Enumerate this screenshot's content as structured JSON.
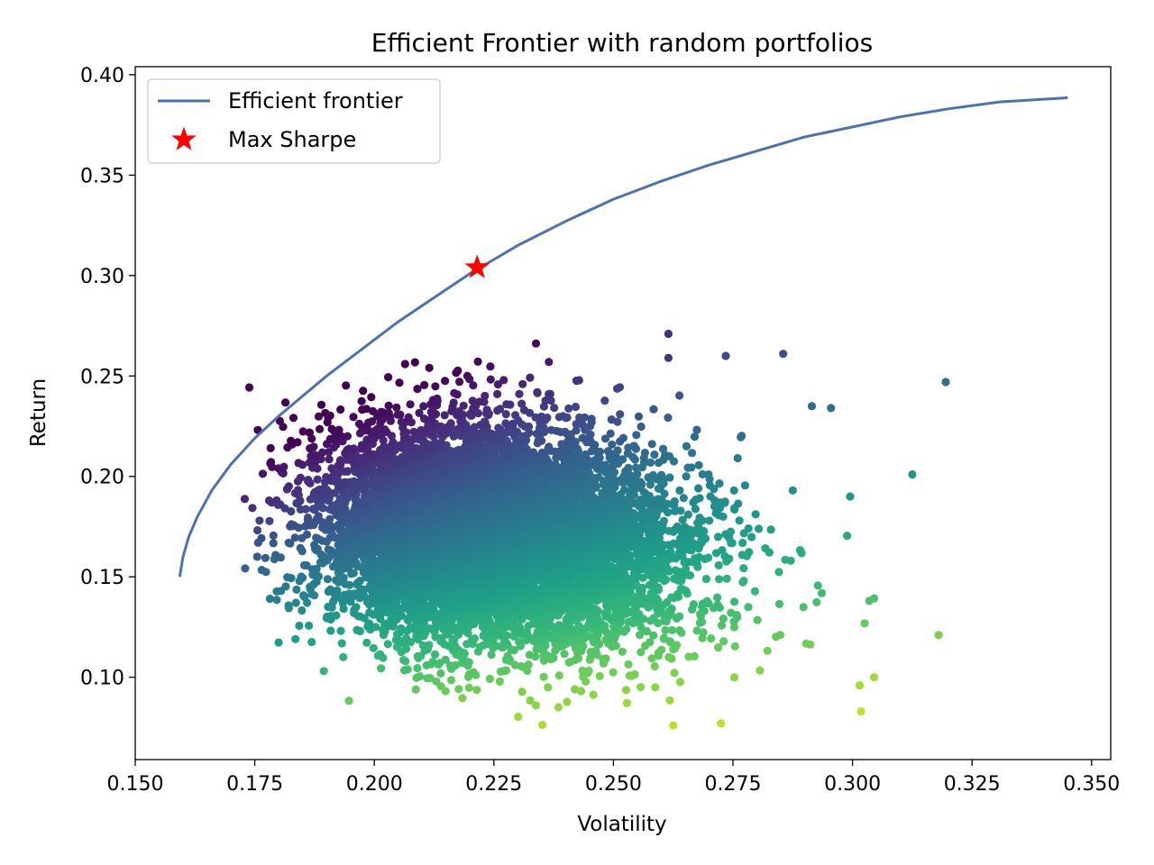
{
  "chart_data": {
    "type": "scatter",
    "title": "Efficient Frontier with random portfolios",
    "xlabel": "Volatility",
    "ylabel": "Return",
    "xlim": [
      0.15,
      0.354
    ],
    "ylim": [
      0.059,
      0.404
    ],
    "x_ticks": [
      0.15,
      0.175,
      0.2,
      0.225,
      0.25,
      0.275,
      0.3,
      0.325,
      0.35
    ],
    "x_tick_labels": [
      "0.150",
      "0.175",
      "0.200",
      "0.225",
      "0.250",
      "0.275",
      "0.300",
      "0.325",
      "0.350"
    ],
    "y_ticks": [
      0.1,
      0.15,
      0.2,
      0.25,
      0.3,
      0.35,
      0.4
    ],
    "y_tick_labels": [
      "0.10",
      "0.15",
      "0.20",
      "0.25",
      "0.30",
      "0.35",
      "0.40"
    ],
    "grid": false,
    "legend": {
      "position": "upper-left",
      "entries": [
        "Efficient frontier",
        "Max Sharpe"
      ]
    },
    "colors": {
      "frontier": "#4c72b0",
      "max_sharpe": "#ff0000",
      "colormap": "viridis"
    },
    "series": [
      {
        "name": "Efficient frontier",
        "type": "line",
        "points": [
          [
            0.1593,
            0.15
          ],
          [
            0.16,
            0.16
          ],
          [
            0.1612,
            0.17
          ],
          [
            0.163,
            0.18
          ],
          [
            0.166,
            0.193
          ],
          [
            0.17,
            0.206
          ],
          [
            0.175,
            0.219
          ],
          [
            0.18,
            0.23
          ],
          [
            0.185,
            0.24
          ],
          [
            0.19,
            0.25
          ],
          [
            0.195,
            0.259
          ],
          [
            0.2,
            0.268
          ],
          [
            0.205,
            0.277
          ],
          [
            0.21,
            0.285
          ],
          [
            0.215,
            0.293
          ],
          [
            0.22,
            0.301
          ],
          [
            0.225,
            0.308
          ],
          [
            0.23,
            0.315
          ],
          [
            0.24,
            0.327
          ],
          [
            0.25,
            0.338
          ],
          [
            0.26,
            0.347
          ],
          [
            0.27,
            0.355
          ],
          [
            0.28,
            0.362
          ],
          [
            0.29,
            0.369
          ],
          [
            0.3,
            0.374
          ],
          [
            0.31,
            0.379
          ],
          [
            0.32,
            0.383
          ],
          [
            0.331,
            0.3865
          ],
          [
            0.345,
            0.3885
          ]
        ]
      },
      {
        "name": "Max Sharpe",
        "type": "marker",
        "marker": "star",
        "points": [
          [
            0.2215,
            0.304
          ]
        ]
      },
      {
        "type": "scatter",
        "count": 9000,
        "color_by": "sharpe_ratio",
        "points_sample": [
          [
            0.2615,
            0.271
          ],
          [
            0.2855,
            0.261
          ],
          [
            0.3195,
            0.247
          ],
          [
            0.2115,
            0.254
          ],
          [
            0.2365,
            0.257
          ],
          [
            0.2615,
            0.259
          ],
          [
            0.2735,
            0.26
          ],
          [
            0.2875,
            0.193
          ],
          [
            0.3125,
            0.201
          ],
          [
            0.2915,
            0.235
          ],
          [
            0.2955,
            0.234
          ],
          [
            0.2995,
            0.19
          ],
          [
            0.3035,
            0.138
          ],
          [
            0.318,
            0.121
          ],
          [
            0.3045,
            0.1
          ],
          [
            0.3015,
            0.096
          ],
          [
            0.3018,
            0.083
          ],
          [
            0.2625,
            0.076
          ],
          [
            0.2725,
            0.077
          ],
          [
            0.2385,
            0.085
          ],
          [
            0.176,
            0.178
          ],
          [
            0.1755,
            0.16
          ],
          [
            0.1805,
            0.143
          ],
          [
            0.1835,
            0.119
          ],
          [
            0.1935,
            0.11
          ],
          [
            0.2065,
            0.108
          ],
          [
            0.217,
            0.106
          ]
        ]
      }
    ]
  }
}
